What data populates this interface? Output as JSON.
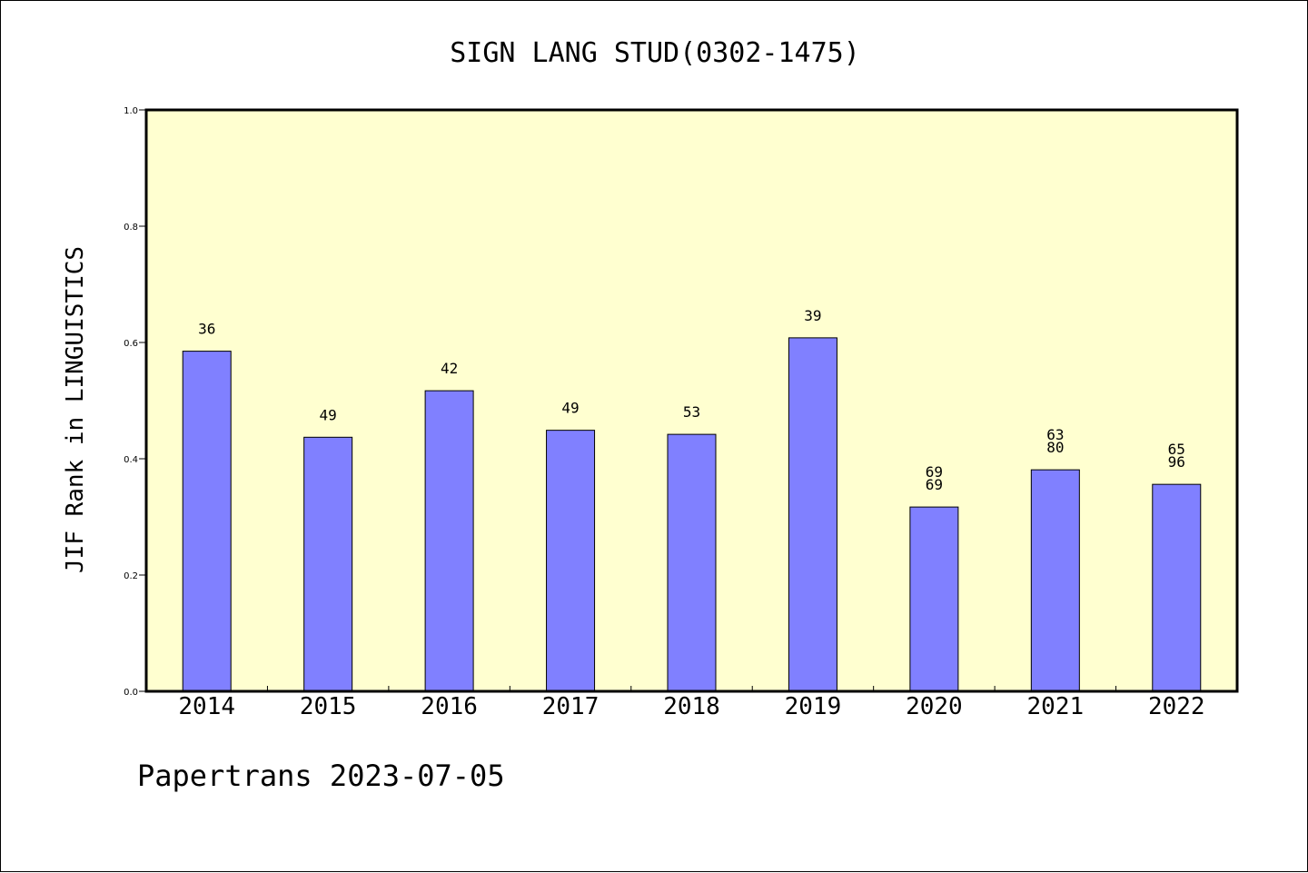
{
  "chart_data": {
    "type": "bar",
    "title": "SIGN LANG STUD(0302-1475)",
    "xlabel": "",
    "ylabel": "JIF Rank in LINGUISTICS",
    "ylim": [
      0.0,
      1.0
    ],
    "yticks": [
      "0.0",
      "0.2",
      "0.4",
      "0.6",
      "0.8",
      "1.0"
    ],
    "categories": [
      "2014",
      "2015",
      "2016",
      "2017",
      "2018",
      "2019",
      "2020",
      "2021",
      "2022"
    ],
    "values": [
      0.585,
      0.437,
      0.517,
      0.449,
      0.442,
      0.608,
      0.317,
      0.381,
      0.356
    ],
    "bar_labels": [
      [
        "36"
      ],
      [
        "49"
      ],
      [
        "42"
      ],
      [
        "49"
      ],
      [
        "53"
      ],
      [
        "39"
      ],
      [
        "69",
        "69"
      ],
      [
        "63",
        "80"
      ],
      [
        "65",
        "96"
      ]
    ],
    "plot_background": "#ffffd0",
    "bar_color": "#8080ff",
    "grid": false
  },
  "footer": "Papertrans 2023-07-05"
}
